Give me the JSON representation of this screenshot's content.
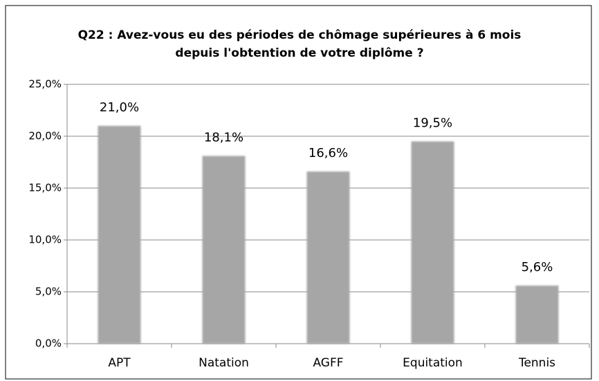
{
  "chart_data": {
    "type": "bar",
    "title": "Q22 : Avez-vous eu des périodes de chômage supérieures à 6 mois depuis l'obtention de votre diplôme ?",
    "categories": [
      "APT",
      "Natation",
      "AGFF",
      "Equitation",
      "Tennis"
    ],
    "values": [
      21.0,
      18.1,
      16.6,
      19.5,
      5.6
    ],
    "value_labels": [
      "21,0%",
      "18,1%",
      "16,6%",
      "19,5%",
      "5,6%"
    ],
    "color": "#a6a6a6",
    "ylim": [
      0,
      25
    ],
    "yticks": [
      {
        "value": 0,
        "label": "0,0%"
      },
      {
        "value": 5,
        "label": "5,0%"
      },
      {
        "value": 10,
        "label": "10,0%"
      },
      {
        "value": 15,
        "label": "15,0%"
      },
      {
        "value": 20,
        "label": "20,0%"
      },
      {
        "value": 25,
        "label": "25,0%"
      }
    ],
    "grid": true
  }
}
